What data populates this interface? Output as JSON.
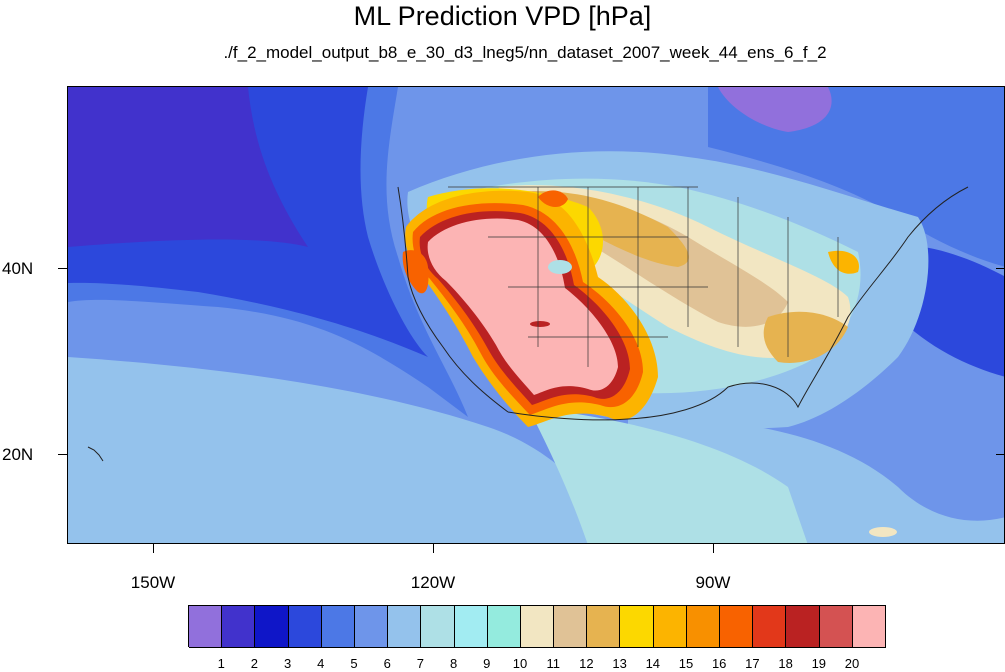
{
  "title": "ML Prediction VPD [hPa]",
  "subtitle": "./f_2_model_output_b8_e_30_d3_lneg5/nn_dataset_2007_week_44_ens_6_f_2",
  "axes": {
    "y_labels": [
      "40N",
      "20N"
    ],
    "x_labels": [
      "150W",
      "120W",
      "90W"
    ]
  },
  "colorbar": {
    "labels": [
      "1",
      "2",
      "3",
      "4",
      "5",
      "6",
      "7",
      "8",
      "9",
      "10",
      "11",
      "12",
      "13",
      "14",
      "15",
      "16",
      "17",
      "18",
      "19",
      "20"
    ],
    "colors": [
      "#9170dc",
      "#4132cc",
      "#0f16c8",
      "#2c48dc",
      "#4c78e6",
      "#6e95ea",
      "#94c2ec",
      "#aee0e6",
      "#a2ecf2",
      "#94ebde",
      "#f2e6c2",
      "#e0c296",
      "#e6b350",
      "#fcd800",
      "#fcb400",
      "#f89000",
      "#f86200",
      "#e2381a",
      "#ba2222",
      "#d45252",
      "#fcb4b4"
    ]
  },
  "chart_data": {
    "type": "heatmap",
    "title": "ML Prediction VPD [hPa]",
    "subtitle": "./f_2_model_output_b8_e_30_d3_lneg5/nn_dataset_2007_week_44_ens_6_f_2",
    "variable": "VPD [hPa]",
    "projection": "cylindrical equidistant",
    "lon_range": [
      -159.3,
      -59.3
    ],
    "lat_range": [
      10.5,
      59.5
    ],
    "color_levels": [
      1,
      2,
      3,
      4,
      5,
      6,
      7,
      8,
      9,
      10,
      11,
      12,
      13,
      14,
      15,
      16,
      17,
      18,
      19,
      20
    ],
    "y_ticks": [
      "40N",
      "20N"
    ],
    "x_ticks": [
      "150W",
      "120W",
      "90W"
    ]
  }
}
